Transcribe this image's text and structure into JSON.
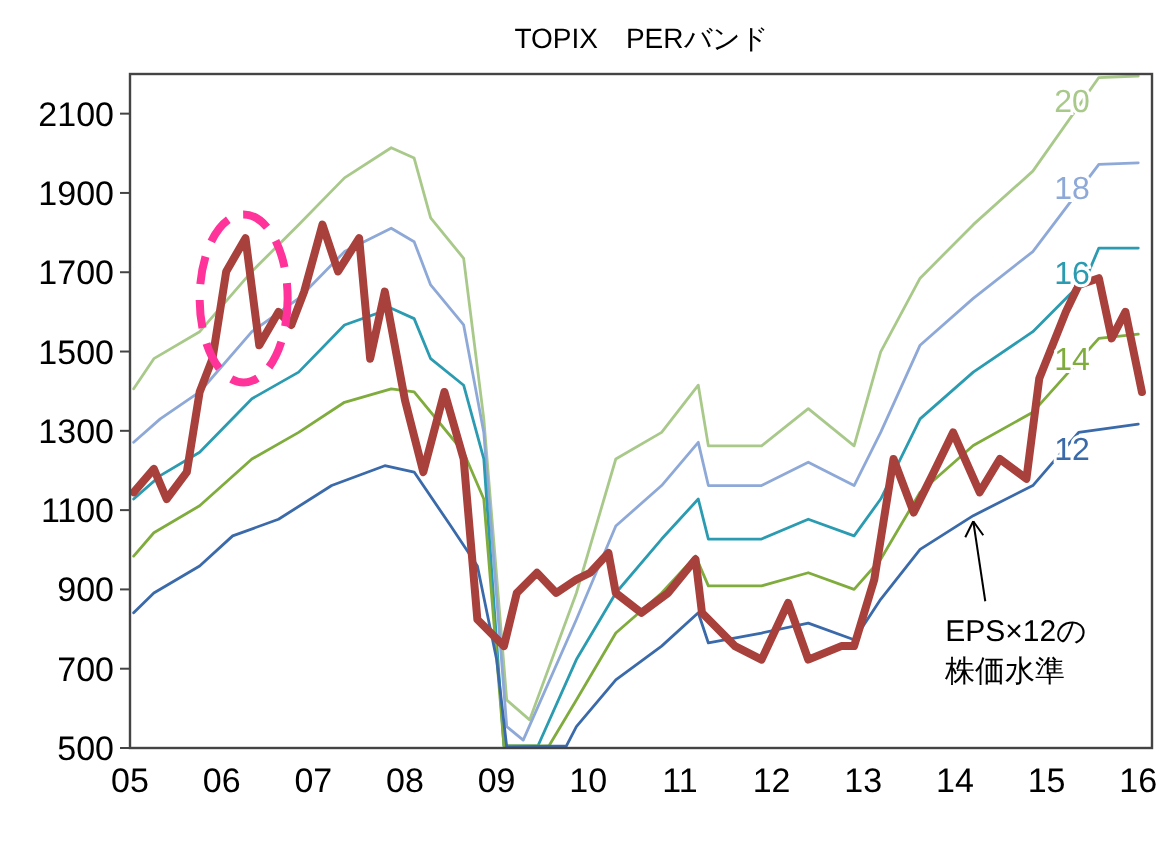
{
  "chart_data": {
    "type": "line",
    "title": "TOPIX　PERバンド",
    "grid": false,
    "marker": "none",
    "line_style": "solid",
    "xlim": [
      2005,
      2016.15
    ],
    "ylim": [
      500,
      2200
    ],
    "xticks": [
      {
        "value": 2005,
        "label": "05"
      },
      {
        "value": 2006,
        "label": "06"
      },
      {
        "value": 2007,
        "label": "07"
      },
      {
        "value": 2008,
        "label": "08"
      },
      {
        "value": 2009,
        "label": "09"
      },
      {
        "value": 2010,
        "label": "10"
      },
      {
        "value": 2011,
        "label": "11"
      },
      {
        "value": 2012,
        "label": "12"
      },
      {
        "value": 2013,
        "label": "13"
      },
      {
        "value": 2014,
        "label": "14"
      },
      {
        "value": 2015,
        "label": "15"
      },
      {
        "value": 2016,
        "label": "16"
      }
    ],
    "yticks": [
      500,
      700,
      900,
      1100,
      1300,
      1500,
      1700,
      1900,
      2100
    ],
    "annotations": [
      {
        "text": "EPS×12の株価水準",
        "x": 2014.2,
        "y": 1087
      }
    ],
    "series": [
      {
        "name": "20",
        "color": "#a9c98a",
        "x": [
          2005.04,
          2005.26,
          2005.76,
          2006.33,
          2006.84,
          2007.34,
          2007.85,
          2008.1,
          2008.28,
          2008.64,
          2008.86,
          2009.11,
          2009.36,
          2009.87,
          2010.3,
          2010.8,
          2011.2,
          2011.31,
          2011.89,
          2012.4,
          2012.9,
          2013.19,
          2013.62,
          2014.2,
          2014.85,
          2015.57,
          2016.0
        ],
        "values": [
          1406,
          1482,
          1550,
          1702,
          1820,
          1938,
          2014,
          1988,
          1837,
          1735,
          1330,
          621,
          571,
          891,
          1229,
          1296,
          1415,
          1262,
          1262,
          1356,
          1262,
          1499,
          1685,
          1820,
          1955,
          2191,
          2195
        ]
      },
      {
        "name": "18",
        "color": "#8ea9d8",
        "x": [
          2005.04,
          2005.33,
          2005.76,
          2006.33,
          2006.84,
          2007.34,
          2007.85,
          2008.1,
          2008.28,
          2008.64,
          2008.86,
          2009.11,
          2009.29,
          2009.87,
          2010.3,
          2010.8,
          2011.2,
          2011.31,
          2011.89,
          2012.4,
          2012.9,
          2013.19,
          2013.62,
          2014.2,
          2014.85,
          2015.57,
          2016.0
        ],
        "values": [
          1271,
          1330,
          1398,
          1550,
          1634,
          1752,
          1811,
          1777,
          1668,
          1567,
          1296,
          554,
          520,
          824,
          1060,
          1162,
          1271,
          1162,
          1162,
          1221,
          1162,
          1296,
          1516,
          1634,
          1752,
          1972,
          1976
        ]
      },
      {
        "name": "16",
        "color": "#2a9bb0",
        "x": [
          2005.04,
          2005.33,
          2005.76,
          2006.33,
          2006.84,
          2007.34,
          2007.85,
          2008.1,
          2008.28,
          2008.64,
          2008.86,
          2009.08,
          2009.45,
          2009.87,
          2010.3,
          2010.8,
          2011.2,
          2011.31,
          2011.89,
          2012.4,
          2012.9,
          2013.19,
          2013.62,
          2014.2,
          2014.85,
          2015.43,
          2015.57,
          2016.0
        ],
        "values": [
          1128,
          1187,
          1246,
          1381,
          1448,
          1567,
          1609,
          1583,
          1482,
          1415,
          1229,
          505,
          505,
          723,
          891,
          1027,
          1128,
          1027,
          1027,
          1077,
          1035,
          1128,
          1330,
          1448,
          1550,
          1685,
          1761,
          1761
        ]
      },
      {
        "name": "14",
        "color": "#7fac3c",
        "x": [
          2005.04,
          2005.26,
          2005.76,
          2006.33,
          2006.84,
          2007.34,
          2007.85,
          2008.1,
          2008.64,
          2008.86,
          2009.08,
          2009.57,
          2009.87,
          2010.3,
          2010.8,
          2011.17,
          2011.31,
          2011.89,
          2012.4,
          2012.9,
          2013.19,
          2013.62,
          2014.2,
          2014.85,
          2015.57,
          2016.0
        ],
        "values": [
          984,
          1043,
          1111,
          1229,
          1296,
          1372,
          1406,
          1398,
          1246,
          1128,
          505,
          505,
          621,
          790,
          891,
          984,
          909,
          909,
          942,
          900,
          976,
          1145,
          1263,
          1347,
          1533,
          1544
        ]
      },
      {
        "name": "12",
        "color": "#3a6aaa",
        "x": [
          2005.04,
          2005.26,
          2005.76,
          2006.12,
          2006.62,
          2007.2,
          2007.78,
          2008.1,
          2008.5,
          2008.79,
          2009.0,
          2009.11,
          2009.76,
          2009.87,
          2010.3,
          2010.8,
          2011.2,
          2011.31,
          2011.89,
          2012.4,
          2012.9,
          2013.19,
          2013.62,
          2014.2,
          2014.85,
          2015.35,
          2016.0
        ],
        "values": [
          841,
          891,
          959,
          1035,
          1077,
          1162,
          1212,
          1196,
          1060,
          959,
          723,
          503,
          505,
          554,
          672,
          757,
          841,
          765,
          790,
          815,
          773,
          875,
          1001,
          1086,
          1162,
          1296,
          1317
        ]
      },
      {
        "color": "#a8403c",
        "x": [
          2005.04,
          2005.26,
          2005.4,
          2005.62,
          2005.76,
          2005.9,
          2006.05,
          2006.26,
          2006.41,
          2006.62,
          2006.76,
          2006.9,
          2007.1,
          2007.27,
          2007.5,
          2007.62,
          2007.78,
          2008.0,
          2008.2,
          2008.43,
          2008.64,
          2008.79,
          2009.08,
          2009.22,
          2009.44,
          2009.65,
          2009.87,
          2010.02,
          2010.22,
          2010.3,
          2010.58,
          2010.87,
          2011.17,
          2011.24,
          2011.6,
          2011.89,
          2012.18,
          2012.4,
          2012.76,
          2012.9,
          2013.12,
          2013.33,
          2013.55,
          2013.77,
          2013.98,
          2014.27,
          2014.49,
          2014.78,
          2014.92,
          2015.21,
          2015.35,
          2015.57,
          2015.71,
          2015.86,
          2016.04
        ],
        "values": [
          1145,
          1204,
          1128,
          1196,
          1398,
          1482,
          1702,
          1786,
          1516,
          1600,
          1567,
          1651,
          1820,
          1702,
          1786,
          1482,
          1651,
          1377,
          1196,
          1398,
          1229,
          824,
          757,
          891,
          942,
          891,
          925,
          942,
          992,
          891,
          841,
          891,
          976,
          841,
          757,
          723,
          866,
          723,
          757,
          757,
          925,
          1229,
          1094,
          1196,
          1296,
          1145,
          1229,
          1179,
          1432,
          1600,
          1668,
          1685,
          1533,
          1600,
          1398
        ]
      }
    ]
  }
}
